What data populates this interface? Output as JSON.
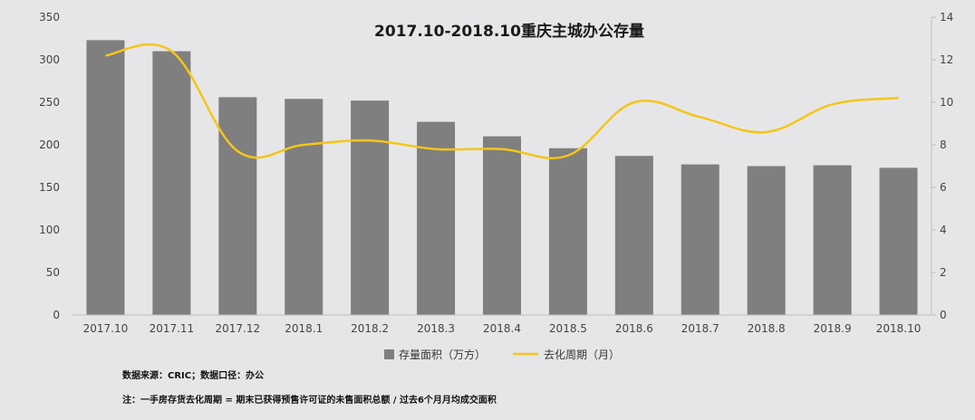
{
  "chart_data": {
    "type": "bar",
    "title": "2017.10-2018.10重庆主城办公存量",
    "categories": [
      "2017.10",
      "2017.11",
      "2017.12",
      "2018.1",
      "2018.2",
      "2018.3",
      "2018.4",
      "2018.5",
      "2018.6",
      "2018.7",
      "2018.8",
      "2018.9",
      "2018.10"
    ],
    "series": [
      {
        "name": "存量面积（万方）",
        "type": "bar",
        "axis": "left",
        "color": "#7f7f7f",
        "values": [
          323,
          310,
          256,
          254,
          252,
          227,
          210,
          196,
          187,
          177,
          175,
          176,
          173
        ]
      },
      {
        "name": "去化周期（月）",
        "type": "line",
        "axis": "right",
        "color": "#f5c518",
        "values": [
          12.2,
          12.4,
          7.7,
          8.0,
          8.2,
          7.8,
          7.8,
          7.5,
          10.0,
          9.3,
          8.6,
          9.9,
          10.2
        ]
      }
    ],
    "y_left": {
      "min": 0,
      "max": 350,
      "ticks": [
        0,
        50,
        100,
        150,
        200,
        250,
        300,
        350
      ]
    },
    "y_right": {
      "min": 0,
      "max": 14,
      "ticks": [
        0,
        2,
        4,
        6,
        8,
        10,
        12,
        14
      ]
    },
    "grid": false,
    "legend_position": "bottom"
  },
  "notes": {
    "source": "数据来源：CRIC；数据口径：办公",
    "definition": "注：一手房存货去化周期 = 期末已获得预售许可证的未售面积总额 / 过去6个月月均成交面积"
  },
  "colors": {
    "background": "#e6e6e8",
    "bar": "#7f7f7f",
    "line": "#f5c518"
  }
}
